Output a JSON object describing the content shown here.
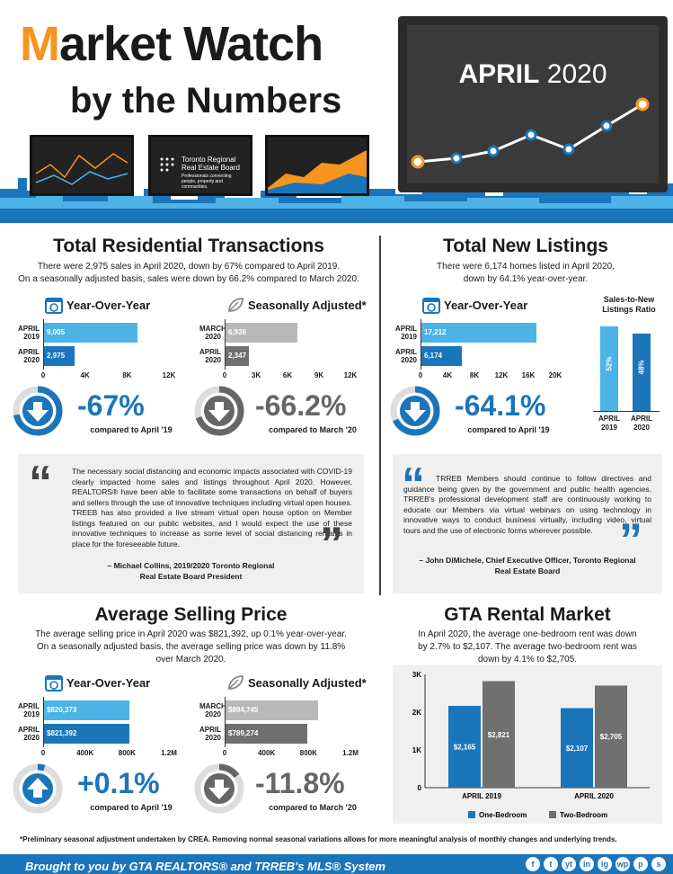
{
  "header": {
    "title_m": "M",
    "title_rest": "arket Watch",
    "subtitle": "by the Numbers",
    "period": "APRIL",
    "year": "2020",
    "board_line1": "Toronto Regional",
    "board_line2": "Real Estate Board",
    "board_tagline": "Professionals connecting people, property and communities."
  },
  "transactions": {
    "title": "Total Residential Transactions",
    "desc1": "There were 2,975 sales in April 2020, down by 67% compared to April 2019.",
    "desc2": "On a seasonally adjusted basis, sales were down by 66.2% compared to March 2020.",
    "yoy": {
      "label": "Year-Over-Year",
      "rows": [
        {
          "label1": "APRIL",
          "label2": "2019",
          "text": "9,005",
          "value": 9005
        },
        {
          "label1": "APRIL",
          "label2": "2020",
          "text": "2,975",
          "value": 2975
        }
      ],
      "ticks": [
        "0",
        "4K",
        "8K",
        "12K"
      ],
      "max": 12000,
      "pct": "-67%",
      "compare": "compared to April '19"
    },
    "sa": {
      "label": "Seasonally Adjusted*",
      "rows": [
        {
          "label1": "MARCH",
          "label2": "2020",
          "text": "6,936",
          "value": 6936
        },
        {
          "label1": "APRIL",
          "label2": "2020",
          "text": "2,347",
          "value": 2347
        }
      ],
      "ticks": [
        "0",
        "3K",
        "6K",
        "9K",
        "12K"
      ],
      "max": 12000,
      "pct": "-66.2%",
      "compare": "compared to March '20"
    }
  },
  "listings": {
    "title": "Total New Listings",
    "desc1": "There were 6,174 homes listed in April 2020,",
    "desc2": "down by 64.1% year-over-year.",
    "yoy": {
      "label": "Year-Over-Year",
      "rows": [
        {
          "label1": "APRIL",
          "label2": "2019",
          "text": "17,212",
          "value": 17212
        },
        {
          "label1": "APRIL",
          "label2": "2020",
          "text": "6,174",
          "value": 6174
        }
      ],
      "ticks": [
        "0",
        "4K",
        "8K",
        "12K",
        "16K",
        "20K"
      ],
      "max": 20000,
      "pct": "-64.1%",
      "compare": "compared to April '19"
    },
    "ratio": {
      "title1": "Sales-to-New",
      "title2": "Listings Ratio",
      "bars": [
        {
          "value": 52,
          "text": "52%",
          "label1": "APRIL",
          "label2": "2019",
          "color": "#4db3e6"
        },
        {
          "value": 48,
          "text": "48%",
          "label1": "APRIL",
          "label2": "2020",
          "color": "#1a75bb"
        }
      ]
    }
  },
  "quote1": {
    "text": "The necessary social distancing and economic impacts associated with COVID-19 clearly impacted home sales and listings throughout April 2020. However, REALTORS® have been able to facilitate some transactions on behalf of buyers and sellers through the use of innovative techniques including virtual open houses. TREEB has also provided a live stream virtual open house option on Member listings featured on our public websites, and I would expect the use of these innovative techniques to increase as some level of social distancing remains in place for the foreseeable future.",
    "sig1": "– Michael Collins, 2019/2020 Toronto Regional",
    "sig2": "Real Estate Board President"
  },
  "quote2": {
    "text": "TRREB Members should continue to follow directives and guidance being given by the government and public health agencies. TRREB's professional development staff are continuously working to educate our Members via virtual webinars on using technology in innovative ways to conduct business virtually, including video, virtual tours and the use of electronic forms wherever possible.",
    "sig1": "– John DiMichele, Chief Executive Officer, Toronto Regional",
    "sig2": "Real Estate Board"
  },
  "price": {
    "title": "Average Selling Price",
    "desc1": "The average selling price in April 2020 was $821,392, up 0.1% year-over-year.",
    "desc2": "On a seasonally adjusted basis, the average selling price was down by 11.8%",
    "desc3": "over March 2020.",
    "yoy": {
      "label": "Year-Over-Year",
      "rows": [
        {
          "label1": "APRIL",
          "label2": "2019",
          "text": "$820,373",
          "value": 820373
        },
        {
          "label1": "APRIL",
          "label2": "2020",
          "text": "$821,392",
          "value": 821392
        }
      ],
      "ticks": [
        "0",
        "400K",
        "800K",
        "1.2M"
      ],
      "max": 1200000,
      "pct": "+0.1%",
      "compare": "compared to April '19"
    },
    "sa": {
      "label": "Seasonally Adjusted*",
      "rows": [
        {
          "label1": "MARCH",
          "label2": "2020",
          "text": "$894,745",
          "value": 894745
        },
        {
          "label1": "APRIL",
          "label2": "2020",
          "text": "$789,274",
          "value": 789274
        }
      ],
      "ticks": [
        "0",
        "400K",
        "800K",
        "1.2M"
      ],
      "max": 1200000,
      "pct": "-11.8%",
      "compare": "compared to March '20"
    }
  },
  "rental": {
    "title": "GTA Rental Market",
    "desc1": "In April 2020, the average one-bedroom rent was down",
    "desc2": "by 2.7% to $2,107.  The average two-bedroom rent was",
    "desc3": "down by 4.1% to $2,705.",
    "chart_data": {
      "type": "bar",
      "categories": [
        "APRIL 2019",
        "APRIL 2020"
      ],
      "series": [
        {
          "name": "One-Bedroom",
          "values": [
            2165,
            2107
          ],
          "labels": [
            "$2,165",
            "$2,107"
          ],
          "color": "#1a75bb"
        },
        {
          "name": "Two-Bedroom",
          "values": [
            2821,
            2705
          ],
          "labels": [
            "$2,821",
            "$2,705"
          ],
          "color": "#707070"
        }
      ],
      "yticks": [
        "0",
        "1K",
        "2K",
        "3K"
      ],
      "ylim": [
        0,
        3000
      ]
    }
  },
  "footnote": "*Preliminary seasonal adjustment undertaken by CREA. Removing normal seasonal variations allows for more meaningful analysis of monthly changes and underlying trends.",
  "footer": {
    "text": "Brought to you by GTA REALTORS® and TRREB's MLS® System",
    "social": [
      "f",
      "t",
      "yt",
      "in",
      "ig",
      "wp",
      "p",
      "s"
    ]
  },
  "colors": {
    "blue": "#1a75bb",
    "lightblue": "#4db3e6",
    "gray": "#707070",
    "lightgray": "#b8b8b8",
    "orange": "#f7941d"
  }
}
